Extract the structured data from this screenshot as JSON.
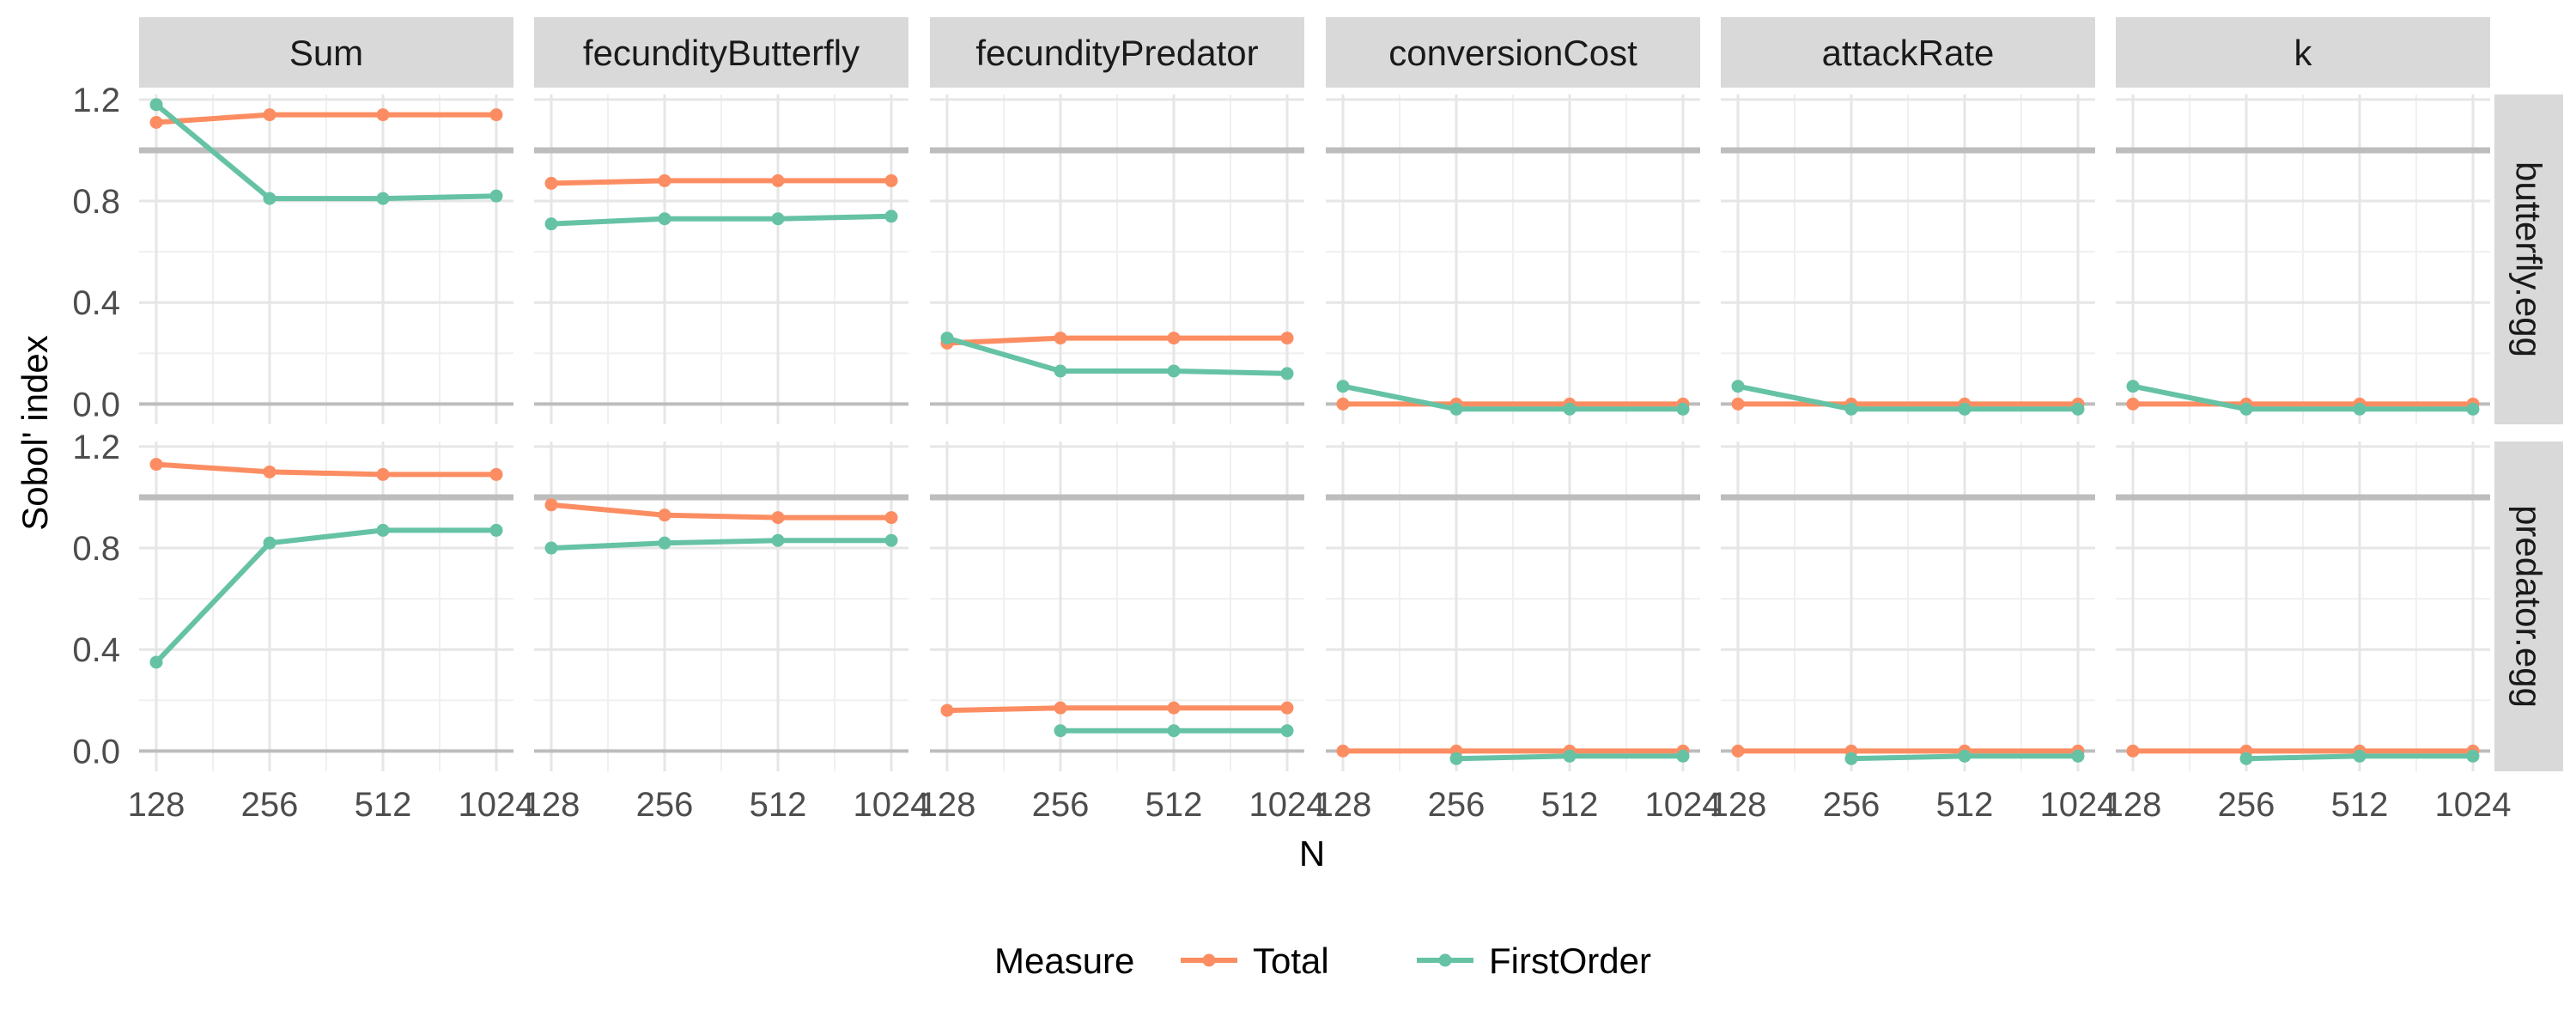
{
  "chart_data": {
    "type": "line",
    "facet_columns": [
      "Sum",
      "fecundityButterfly",
      "fecundityPredator",
      "conversionCost",
      "attackRate",
      "k"
    ],
    "facet_rows": [
      "butterfly.egg",
      "predator.egg"
    ],
    "x": [
      128,
      256,
      512,
      1024
    ],
    "x_tick_labels": [
      "128",
      "256",
      "512",
      "1024"
    ],
    "x_scale": "log2",
    "xlabel": "N",
    "ylabel": "Sobol' index",
    "ylim": [
      -0.08,
      1.22
    ],
    "y_ticks": [
      0.0,
      0.4,
      0.8,
      1.2
    ],
    "y_tick_labels": [
      "0.0",
      "0.4",
      "0.8",
      "1.2"
    ],
    "reference_lines": [
      0,
      1
    ],
    "grid": true,
    "legend": {
      "title": "Measure",
      "position": "bottom",
      "items": [
        {
          "name": "Total",
          "color": "#FC8D62"
        },
        {
          "name": "FirstOrder",
          "color": "#66C2A5"
        }
      ]
    },
    "panels": [
      {
        "row": "butterfly.egg",
        "column": "Sum",
        "series": [
          {
            "name": "Total",
            "values": [
              1.11,
              1.14,
              1.14,
              1.14
            ]
          },
          {
            "name": "FirstOrder",
            "values": [
              1.18,
              0.81,
              0.81,
              0.82
            ]
          }
        ]
      },
      {
        "row": "butterfly.egg",
        "column": "fecundityButterfly",
        "series": [
          {
            "name": "Total",
            "values": [
              0.87,
              0.88,
              0.88,
              0.88
            ]
          },
          {
            "name": "FirstOrder",
            "values": [
              0.71,
              0.73,
              0.73,
              0.74
            ]
          }
        ]
      },
      {
        "row": "butterfly.egg",
        "column": "fecundityPredator",
        "series": [
          {
            "name": "Total",
            "values": [
              0.24,
              0.26,
              0.26,
              0.26
            ]
          },
          {
            "name": "FirstOrder",
            "values": [
              0.26,
              0.13,
              0.13,
              0.12
            ]
          }
        ]
      },
      {
        "row": "butterfly.egg",
        "column": "conversionCost",
        "series": [
          {
            "name": "Total",
            "values": [
              0.0,
              0.0,
              0.0,
              0.0
            ]
          },
          {
            "name": "FirstOrder",
            "values": [
              0.07,
              -0.02,
              -0.02,
              -0.02
            ]
          }
        ]
      },
      {
        "row": "butterfly.egg",
        "column": "attackRate",
        "series": [
          {
            "name": "Total",
            "values": [
              0.0,
              0.0,
              0.0,
              0.0
            ]
          },
          {
            "name": "FirstOrder",
            "values": [
              0.07,
              -0.02,
              -0.02,
              -0.02
            ]
          }
        ]
      },
      {
        "row": "butterfly.egg",
        "column": "k",
        "series": [
          {
            "name": "Total",
            "values": [
              0.0,
              0.0,
              0.0,
              0.0
            ]
          },
          {
            "name": "FirstOrder",
            "values": [
              0.07,
              -0.02,
              -0.02,
              -0.02
            ]
          }
        ]
      },
      {
        "row": "predator.egg",
        "column": "Sum",
        "series": [
          {
            "name": "Total",
            "values": [
              1.13,
              1.1,
              1.09,
              1.09
            ]
          },
          {
            "name": "FirstOrder",
            "values": [
              0.35,
              0.82,
              0.87,
              0.87
            ]
          }
        ]
      },
      {
        "row": "predator.egg",
        "column": "fecundityButterfly",
        "series": [
          {
            "name": "Total",
            "values": [
              0.97,
              0.93,
              0.92,
              0.92
            ]
          },
          {
            "name": "FirstOrder",
            "values": [
              0.8,
              0.82,
              0.83,
              0.83
            ]
          }
        ]
      },
      {
        "row": "predator.egg",
        "column": "fecundityPredator",
        "series": [
          {
            "name": "Total",
            "values": [
              0.16,
              0.17,
              0.17,
              0.17
            ]
          },
          {
            "name": "FirstOrder",
            "values": [
              null,
              0.08,
              0.08,
              0.08
            ]
          }
        ]
      },
      {
        "row": "predator.egg",
        "column": "conversionCost",
        "series": [
          {
            "name": "Total",
            "values": [
              0.0,
              0.0,
              0.0,
              0.0
            ]
          },
          {
            "name": "FirstOrder",
            "values": [
              null,
              -0.03,
              -0.02,
              -0.02
            ]
          }
        ]
      },
      {
        "row": "predator.egg",
        "column": "attackRate",
        "series": [
          {
            "name": "Total",
            "values": [
              0.0,
              0.0,
              0.0,
              0.0
            ]
          },
          {
            "name": "FirstOrder",
            "values": [
              null,
              -0.03,
              -0.02,
              -0.02
            ]
          }
        ]
      },
      {
        "row": "predator.egg",
        "column": "k",
        "series": [
          {
            "name": "Total",
            "values": [
              0.0,
              0.0,
              0.0,
              0.0
            ]
          },
          {
            "name": "FirstOrder",
            "values": [
              null,
              -0.03,
              -0.02,
              -0.02
            ]
          }
        ]
      }
    ]
  }
}
